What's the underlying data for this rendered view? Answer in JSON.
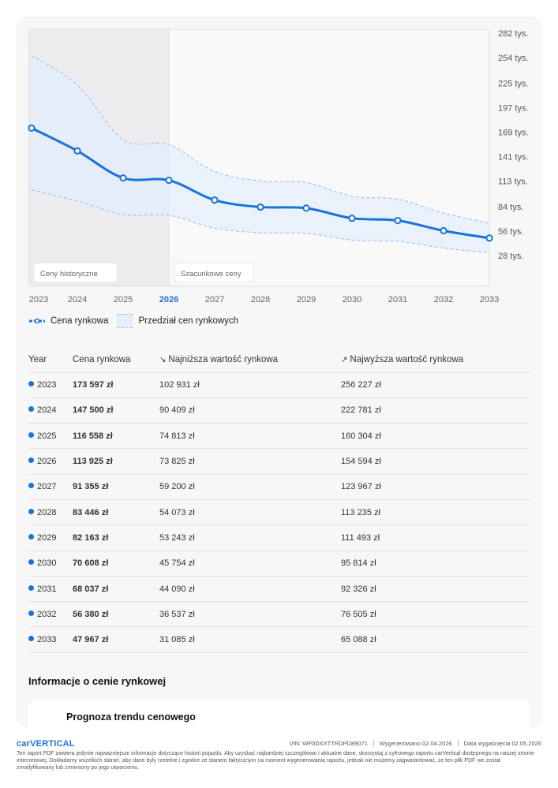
{
  "chart_data": {
    "type": "line",
    "x": [
      "2023",
      "2024",
      "2025",
      "2026",
      "2027",
      "2028",
      "2029",
      "2030",
      "2031",
      "2032",
      "2033"
    ],
    "series": [
      {
        "name": "Cena rynkowa",
        "values": [
          173597,
          147500,
          116558,
          113925,
          91355,
          83446,
          82163,
          70608,
          68037,
          56380,
          47967
        ]
      },
      {
        "name": "Najniższa wartość rynkowa",
        "values": [
          102931,
          90409,
          74813,
          73825,
          59200,
          54073,
          53243,
          45754,
          44090,
          36537,
          31085
        ]
      },
      {
        "name": "Najwyższa wartość rynkowa",
        "values": [
          256227,
          222781,
          160304,
          154594,
          123967,
          113235,
          111493,
          95814,
          92326,
          76505,
          65088
        ]
      }
    ],
    "y_ticks": [
      "282 tys.",
      "254 tys.",
      "225 tys.",
      "197 tys.",
      "169 tys.",
      "141 tys.",
      "113 tys.",
      "84 tys.",
      "56 tys.",
      "28 tys."
    ],
    "y_tick_values": [
      282000,
      254000,
      225000,
      197000,
      169000,
      141000,
      113000,
      84000,
      56000,
      28000
    ],
    "ylim": [
      28000,
      282000
    ],
    "regions": {
      "historical": "Ceny historyczne",
      "forecast": "Szacunkowe ceny"
    },
    "historical_end": "2026",
    "highlight_year": "2026",
    "colors": {
      "line": "#1b73d9",
      "band": "#e3eefb",
      "band_edge": "#8fbcf0",
      "historical_bg": "#ececee",
      "highlight_tick": "#1b73d9"
    }
  },
  "legend": {
    "line_label": "Cena rynkowa",
    "band_label": "Przedział cen rynkowych"
  },
  "table": {
    "headers": {
      "year": "Year",
      "price": "Cena rynkowa",
      "low": "Najniższa wartość rynkowa",
      "high": "Najwyższa wartość rynkowa"
    },
    "rows": [
      {
        "year": "2023",
        "price": "173 597 zł",
        "low": "102 931 zł",
        "high": "256 227 zł"
      },
      {
        "year": "2024",
        "price": "147 500 zł",
        "low": "90 409 zł",
        "high": "222 781 zł"
      },
      {
        "year": "2025",
        "price": "116 558 zł",
        "low": "74 813 zł",
        "high": "160 304 zł"
      },
      {
        "year": "2026",
        "price": "113 925 zł",
        "low": "73 825 zł",
        "high": "154 594 zł"
      },
      {
        "year": "2027",
        "price": "91 355 zł",
        "low": "59 200 zł",
        "high": "123 967 zł"
      },
      {
        "year": "2028",
        "price": "83 446 zł",
        "low": "54 073 zł",
        "high": "113 235 zł"
      },
      {
        "year": "2029",
        "price": "82 163 zł",
        "low": "53 243 zł",
        "high": "111 493 zł"
      },
      {
        "year": "2030",
        "price": "70 608 zł",
        "low": "45 754 zł",
        "high": "95 814 zł"
      },
      {
        "year": "2031",
        "price": "68 037 zł",
        "low": "44 090 zł",
        "high": "92 326 zł"
      },
      {
        "year": "2032",
        "price": "56 380 zł",
        "low": "36 537 zł",
        "high": "76 505 zł"
      },
      {
        "year": "2033",
        "price": "47 967 zł",
        "low": "31 085 zł",
        "high": "65 088 zł"
      }
    ]
  },
  "info": {
    "title": "Informacje o cenie rynkowej",
    "card_title": "Prognoza trendu cenowego"
  },
  "footer": {
    "logo": "carVERTICAL",
    "vin": "VIN:  WF0DXXTTRDPD89071",
    "generated": "Wygenerowano  02.04.2026",
    "expires": "Data wygaśnięcia  02.05.2026",
    "disclaimer": "Ten raport PDF zawiera jedynie najważniejsze informacje dotyczące historii pojazdu. Aby uzyskać najbardziej szczegółowe i aktualne dane, skorzystaj z cyfrowego raportu carVertical dostępnego na naszej stronie internetowej. Dokładamy wszelkich starań, aby dane były rzetelne i zgodne ze stanem faktycznym na moment wygenerowania raportu, jednak nie możemy zagwarantować, że ten plik PDF nie został zmodyfikowany lub zmieniony po jego utworzeniu."
  }
}
